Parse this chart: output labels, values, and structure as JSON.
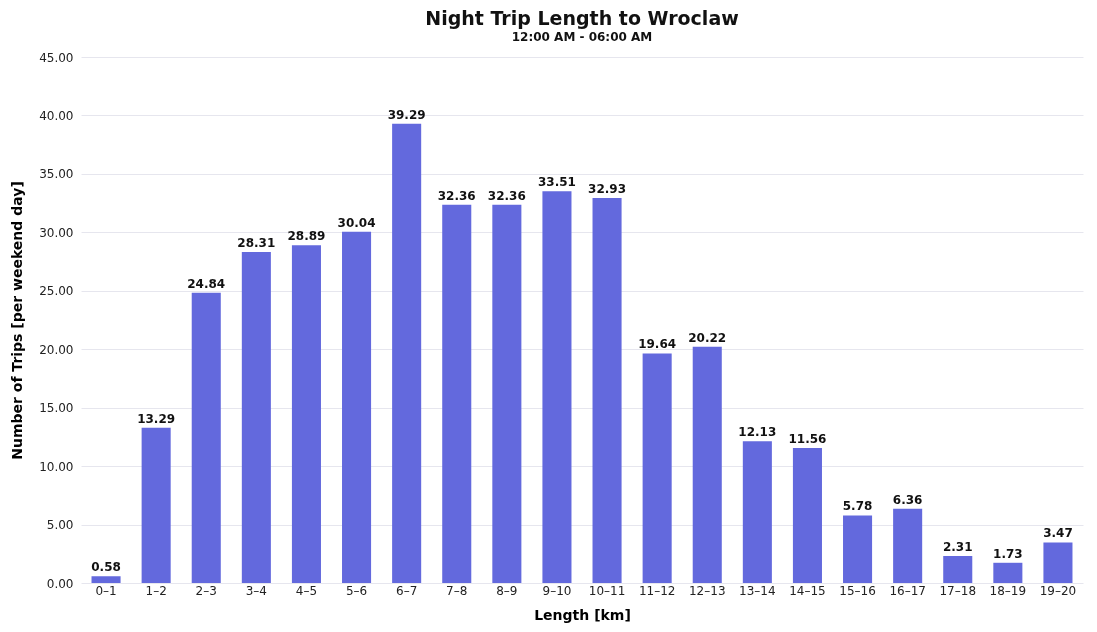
{
  "chart_data": {
    "type": "bar",
    "title": "Night Trip Length to Wroclaw",
    "subtitle": "12:00 AM - 06:00 AM",
    "xlabel": "Length [km]",
    "ylabel": "Number of Trips [per weekend day]",
    "categories": [
      "0–1",
      "1–2",
      "2–3",
      "3–4",
      "4–5",
      "5–6",
      "6–7",
      "7–8",
      "8–9",
      "9–10",
      "10–11",
      "11–12",
      "12–13",
      "13–14",
      "14–15",
      "15–16",
      "16–17",
      "17–18",
      "18–19",
      "19–20"
    ],
    "values": [
      0.58,
      13.29,
      24.84,
      28.31,
      28.89,
      30.04,
      39.29,
      32.36,
      32.36,
      33.51,
      32.93,
      19.64,
      20.22,
      12.13,
      11.56,
      5.78,
      6.36,
      2.31,
      1.73,
      3.47
    ],
    "color": "#6369dd",
    "ylim": [
      0,
      45
    ],
    "yticks": [
      {
        "value": 0,
        "label": "0.00"
      },
      {
        "value": 5,
        "label": "5.00"
      },
      {
        "value": 10,
        "label": "10.00"
      },
      {
        "value": 15,
        "label": "15.00"
      },
      {
        "value": 20,
        "label": "20.00"
      },
      {
        "value": 25,
        "label": "25.00"
      },
      {
        "value": 30,
        "label": "30.00"
      },
      {
        "value": 35,
        "label": "35.00"
      },
      {
        "value": 40,
        "label": "40.00"
      },
      {
        "value": 45,
        "label": "45.00"
      }
    ],
    "grid": "y",
    "data_labels": true
  }
}
